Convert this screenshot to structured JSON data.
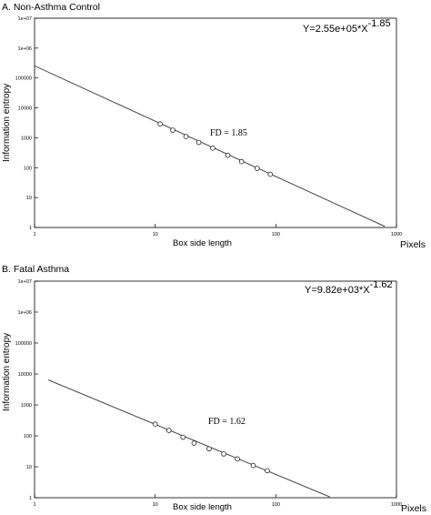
{
  "chart_data": [
    {
      "type": "scatter",
      "title": "A. Non-Asthma Control",
      "equation": {
        "base": "Y=2.55e+05*X",
        "exponent": "-1.85"
      },
      "annotation": "FD = 1.85",
      "xlabel": "Box side length",
      "ylabel": "Information entropy",
      "unit_label": "Pixels",
      "x_scale": "log",
      "y_scale": "log",
      "xlim": [
        1,
        1000
      ],
      "ylim": [
        1,
        10000000
      ],
      "x_ticks": [
        "1",
        "10",
        "100",
        "1000"
      ],
      "y_ticks": [
        "1",
        "10",
        "100",
        "1000",
        "10000",
        "100000",
        "1e+06",
        "1e+07"
      ],
      "grid": false,
      "fit_line": {
        "coefficient": 255000,
        "exponent": -1.85,
        "x_range": [
          1,
          800
        ]
      },
      "points": [
        {
          "x": 11,
          "y": 2900
        },
        {
          "x": 14,
          "y": 1800
        },
        {
          "x": 18,
          "y": 1100
        },
        {
          "x": 23,
          "y": 700
        },
        {
          "x": 30,
          "y": 450
        },
        {
          "x": 40,
          "y": 260
        },
        {
          "x": 52,
          "y": 160
        },
        {
          "x": 70,
          "y": 95
        },
        {
          "x": 90,
          "y": 60
        }
      ]
    },
    {
      "type": "scatter",
      "title": "B. Fatal Asthma",
      "equation": {
        "base": "Y=9.82e+03*X",
        "exponent": "-1.62"
      },
      "annotation": "FD = 1.62",
      "xlabel": "Box side length",
      "ylabel": "Information entropy",
      "unit_label": "Pixels",
      "x_scale": "log",
      "y_scale": "log",
      "xlim": [
        1,
        1000
      ],
      "ylim": [
        1,
        10000000
      ],
      "x_ticks": [
        "1",
        "10",
        "100",
        "1000"
      ],
      "y_ticks": [
        "1",
        "10",
        "100",
        "1000",
        "10000",
        "100000",
        "1e+06",
        "1e+07"
      ],
      "grid": false,
      "fit_line": {
        "coefficient": 9820,
        "exponent": -1.62,
        "x_range": [
          1.3,
          280
        ]
      },
      "points": [
        {
          "x": 10,
          "y": 240
        },
        {
          "x": 13,
          "y": 150
        },
        {
          "x": 17,
          "y": 90
        },
        {
          "x": 21,
          "y": 58
        },
        {
          "x": 28,
          "y": 38
        },
        {
          "x": 37,
          "y": 26
        },
        {
          "x": 48,
          "y": 18
        },
        {
          "x": 65,
          "y": 11
        },
        {
          "x": 85,
          "y": 7.5
        }
      ]
    }
  ]
}
